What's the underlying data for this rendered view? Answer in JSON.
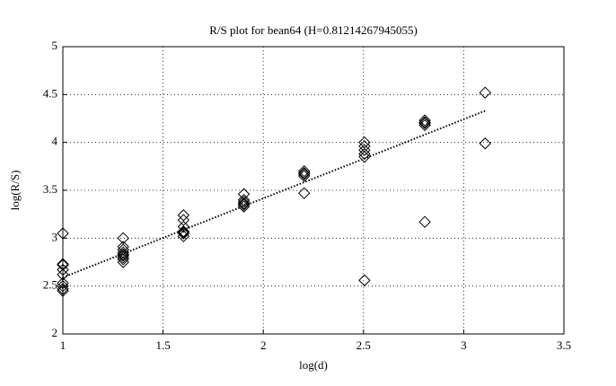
{
  "chart_data": {
    "type": "scatter",
    "title": "R/S plot for bean64 (H=0.81214267945055)",
    "x_label": "log(d)",
    "y_label": "log(R/S)",
    "xlim": [
      1,
      3.5
    ],
    "ylim": [
      2,
      5
    ],
    "xticks": [
      1,
      1.5,
      2,
      2.5,
      3,
      3.5
    ],
    "yticks": [
      2,
      2.5,
      3,
      3.5,
      4,
      4.5,
      5
    ],
    "grid": true,
    "color": "#000000",
    "points": {
      "x": [
        1,
        1,
        1,
        1,
        1,
        1,
        1,
        1,
        1,
        1.301,
        1.301,
        1.301,
        1.301,
        1.301,
        1.301,
        1.301,
        1.301,
        1.301,
        1.602,
        1.602,
        1.602,
        1.602,
        1.602,
        1.602,
        1.602,
        1.903,
        1.903,
        1.903,
        1.903,
        1.903,
        1.903,
        2.204,
        2.204,
        2.204,
        2.204,
        2.204,
        2.505,
        2.505,
        2.505,
        2.505,
        2.505,
        2.505,
        2.806,
        2.806,
        2.806,
        2.806,
        2.806,
        3.107,
        3.107
      ],
      "y": [
        3.05,
        2.73,
        2.72,
        2.67,
        2.62,
        2.53,
        2.5,
        2.47,
        2.45,
        3.0,
        2.91,
        2.88,
        2.85,
        2.83,
        2.82,
        2.8,
        2.78,
        2.75,
        3.24,
        3.19,
        3.12,
        3.07,
        3.06,
        3.05,
        3.02,
        3.46,
        3.4,
        3.38,
        3.36,
        3.35,
        3.33,
        3.7,
        3.68,
        3.67,
        3.65,
        3.47,
        4.0,
        3.96,
        3.92,
        3.88,
        3.85,
        2.56,
        4.23,
        4.21,
        4.2,
        4.18,
        3.17,
        4.52,
        3.99
      ]
    },
    "fit_line": {
      "x": [
        1,
        3.107
      ],
      "y": [
        2.59,
        4.33
      ]
    }
  }
}
